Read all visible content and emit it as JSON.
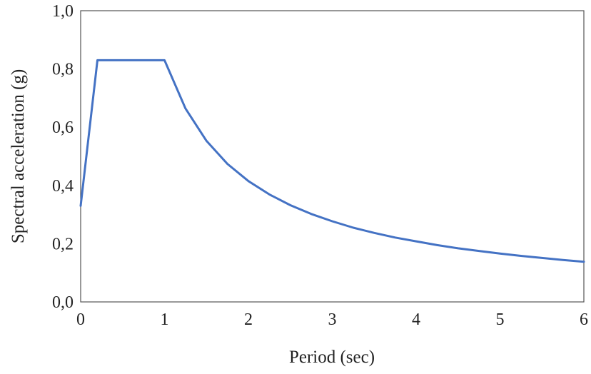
{
  "chart_data": {
    "type": "line",
    "xlabel": "Period (sec)",
    "ylabel": "Spectral acceleration (g)",
    "xlim": [
      0,
      6
    ],
    "ylim": [
      0,
      1
    ],
    "x_ticks": [
      "0",
      "1",
      "2",
      "3",
      "4",
      "5",
      "6"
    ],
    "y_ticks": [
      "0,0",
      "0,2",
      "0,4",
      "0,6",
      "0,8",
      "1,0"
    ],
    "grid": false,
    "legend": "none",
    "series": [
      {
        "color": "#4472C4",
        "x": [
          0,
          0.2,
          1.0,
          1.25,
          1.5,
          1.75,
          2.0,
          2.25,
          2.5,
          2.75,
          3.0,
          3.25,
          3.5,
          3.75,
          4.0,
          4.25,
          4.5,
          4.75,
          5.0,
          5.25,
          5.5,
          5.75,
          6.0
        ],
        "y": [
          0.33,
          0.83,
          0.83,
          0.664,
          0.553,
          0.474,
          0.415,
          0.369,
          0.332,
          0.302,
          0.277,
          0.255,
          0.237,
          0.221,
          0.208,
          0.195,
          0.184,
          0.175,
          0.166,
          0.158,
          0.151,
          0.144,
          0.138
        ]
      }
    ]
  }
}
